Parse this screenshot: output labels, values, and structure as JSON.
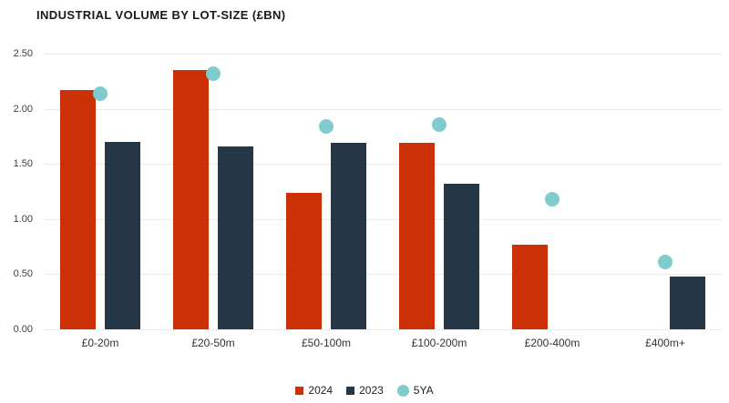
{
  "chart_data": {
    "type": "bar",
    "title": "INDUSTRIAL VOLUME BY LOT-SIZE (£BN)",
    "categories": [
      "£0-20m",
      "£20-50m",
      "£50-100m",
      "£100-200m",
      "£200-400m",
      "£400m+"
    ],
    "series": [
      {
        "name": "2024",
        "type": "bar",
        "color": "#cc3007",
        "values": [
          2.17,
          2.35,
          1.24,
          1.69,
          0.77,
          null
        ]
      },
      {
        "name": "2023",
        "type": "bar",
        "color": "#253746",
        "values": [
          1.7,
          1.66,
          1.69,
          1.32,
          null,
          0.48
        ]
      },
      {
        "name": "5YA",
        "type": "dot",
        "color": "#80cbcd",
        "values": [
          2.14,
          2.32,
          1.84,
          1.86,
          1.18,
          0.61
        ]
      }
    ],
    "xlabel": "",
    "ylabel": "",
    "ylim": [
      0,
      2.5
    ],
    "yticks": [
      0.0,
      0.5,
      1.0,
      1.5,
      2.0,
      2.5
    ],
    "ytick_labels": [
      "0.00",
      "0.50",
      "1.00",
      "1.50",
      "2.00",
      "2.50"
    ],
    "grid": true,
    "grid_color": "#e9e9e9",
    "legend_position": "bottom-center",
    "background_color": "#ffffff",
    "title_color": "#191919",
    "axis_text_color": "#3d3d3d"
  }
}
